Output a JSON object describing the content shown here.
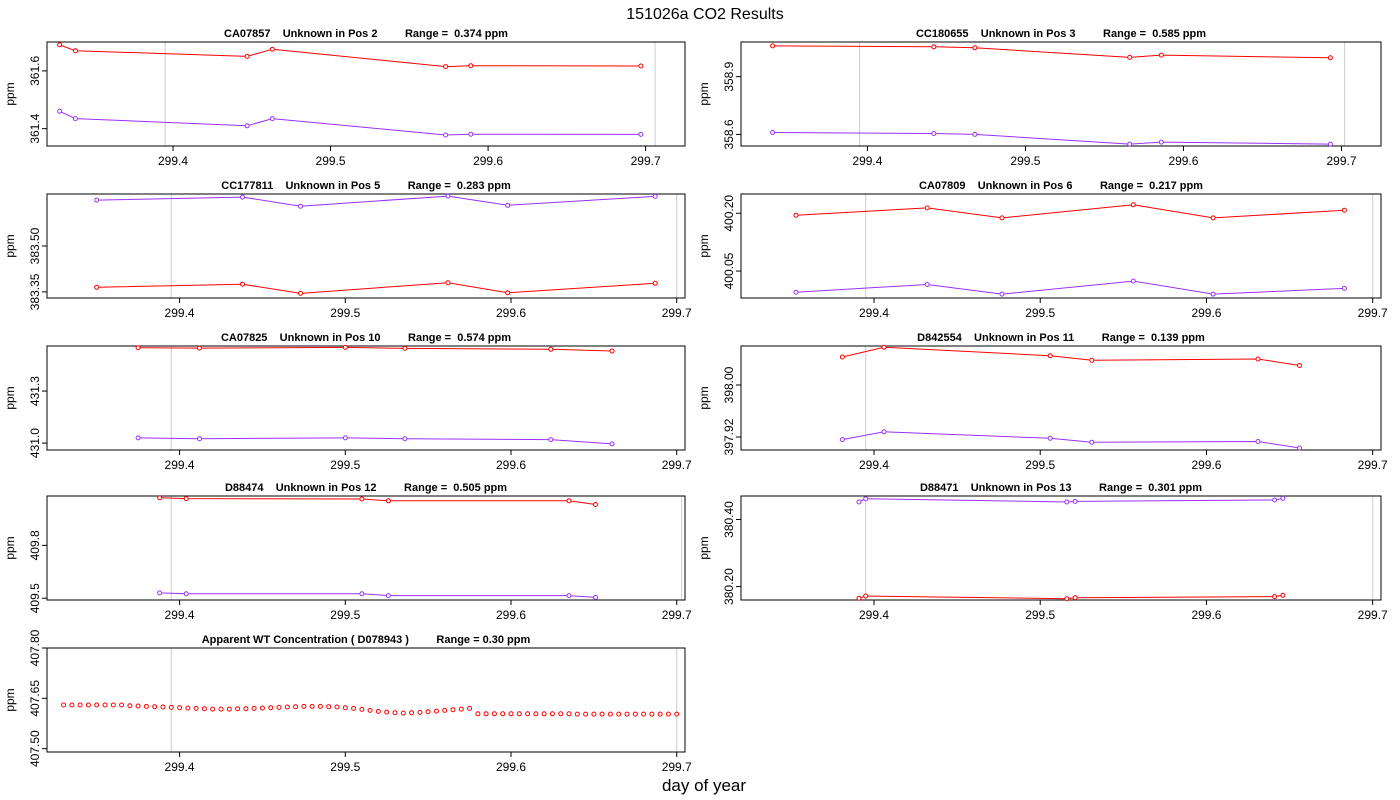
{
  "page": {
    "title": "151026a  CO2 Results",
    "xlabel": "day of year",
    "ylabel": "ppm"
  },
  "colors": {
    "series_a": "#ff0000",
    "series_b": "#9b30ff",
    "gridline": "#cccccc",
    "frame": "#000000"
  },
  "chart_data": [
    {
      "type": "line",
      "title": "CA07857    Unknown in Pos 2         Range =  0.374 ppm",
      "xlim": [
        299.32,
        299.725
      ],
      "xticks": [
        299.4,
        299.5,
        299.6,
        299.7
      ],
      "xtick_labels": [
        "299.4",
        "299.5",
        "299.6",
        "299.7"
      ],
      "vlines": [
        299.395,
        299.706
      ],
      "ylim": [
        361.34,
        361.7
      ],
      "yticks": [
        361.4,
        361.6
      ],
      "ytick_labels": [
        "361.4",
        "361.6"
      ],
      "ylabel": "ppm",
      "series": [
        {
          "name": "red",
          "x": [
            299.328,
            299.338,
            299.447,
            299.463,
            299.573,
            299.589,
            299.697
          ],
          "y": [
            361.69,
            361.67,
            361.65,
            361.675,
            361.615,
            361.618,
            361.617
          ]
        },
        {
          "name": "purple",
          "x": [
            299.328,
            299.338,
            299.447,
            299.463,
            299.573,
            299.589,
            299.697
          ],
          "y": [
            361.46,
            361.435,
            361.41,
            361.435,
            361.378,
            361.381,
            361.38
          ]
        }
      ]
    },
    {
      "type": "line",
      "title": "CC180655    Unknown in Pos 3         Range =  0.585 ppm",
      "xlim": [
        299.32,
        299.725
      ],
      "xticks": [
        299.4,
        299.5,
        299.6,
        299.7
      ],
      "xtick_labels": [
        "299.4",
        "299.5",
        "299.6",
        "299.7"
      ],
      "vlines": [
        299.395,
        299.702
      ],
      "ylim": [
        358.54,
        359.08
      ],
      "yticks": [
        358.6,
        358.9
      ],
      "ytick_labels": [
        "358.6",
        "358.9"
      ],
      "ylabel": "ppm",
      "series": [
        {
          "name": "red",
          "x": [
            299.34,
            299.442,
            299.468,
            299.566,
            299.586,
            299.693
          ],
          "y": [
            359.06,
            359.055,
            359.05,
            359.0,
            359.012,
            358.998
          ]
        },
        {
          "name": "purple",
          "x": [
            299.34,
            299.442,
            299.468,
            299.566,
            299.586,
            299.693
          ],
          "y": [
            358.61,
            358.605,
            358.6,
            358.55,
            358.56,
            358.55
          ]
        }
      ]
    },
    {
      "type": "line",
      "title": "CC177811    Unknown in Pos 5         Range =  0.283 ppm",
      "xlim": [
        299.32,
        299.705
      ],
      "xticks": [
        299.4,
        299.5,
        299.6,
        299.7
      ],
      "xtick_labels": [
        "299.4",
        "299.5",
        "299.6",
        "299.7"
      ],
      "vlines": [
        299.395,
        299.7
      ],
      "ylim": [
        383.33,
        383.67
      ],
      "yticks": [
        383.35,
        383.5
      ],
      "ytick_labels": [
        "383.35",
        "383.50"
      ],
      "ylabel": "ppm",
      "series": [
        {
          "name": "purple",
          "x": [
            299.35,
            299.438,
            299.473,
            299.562,
            299.598,
            299.687
          ],
          "y": [
            383.65,
            383.66,
            383.63,
            383.663,
            383.633,
            383.662
          ]
        },
        {
          "name": "red",
          "x": [
            299.35,
            299.438,
            299.473,
            299.562,
            299.598,
            299.687
          ],
          "y": [
            383.365,
            383.375,
            383.345,
            383.38,
            383.347,
            383.378
          ]
        }
      ]
    },
    {
      "type": "line",
      "title": "CA07809    Unknown in Pos 6         Range =  0.217 ppm",
      "xlim": [
        299.32,
        299.705
      ],
      "xticks": [
        299.4,
        299.5,
        299.6,
        299.7
      ],
      "xtick_labels": [
        "299.4",
        "299.5",
        "299.6",
        "299.7"
      ],
      "vlines": [
        299.395,
        299.7
      ],
      "ylim": [
        399.98,
        400.25
      ],
      "yticks": [
        400.05,
        400.2
      ],
      "ytick_labels": [
        "400.05",
        "400.20"
      ],
      "ylabel": "ppm",
      "series": [
        {
          "name": "red",
          "x": [
            299.353,
            299.432,
            299.477,
            299.556,
            299.604,
            299.683
          ],
          "y": [
            400.195,
            400.214,
            400.188,
            400.222,
            400.188,
            400.208
          ]
        },
        {
          "name": "purple",
          "x": [
            299.353,
            299.432,
            299.477,
            299.556,
            299.604,
            299.683
          ],
          "y": [
            399.995,
            400.015,
            399.99,
            400.024,
            399.99,
            400.005
          ]
        }
      ]
    },
    {
      "type": "line",
      "title": "CA07825    Unknown in Pos 10         Range =  0.574 ppm",
      "xlim": [
        299.32,
        299.705
      ],
      "xticks": [
        299.4,
        299.5,
        299.6,
        299.7
      ],
      "xtick_labels": [
        "299.4",
        "299.5",
        "299.6",
        "299.7"
      ],
      "vlines": [
        299.395,
        299.705
      ],
      "ylim": [
        430.96,
        431.56
      ],
      "yticks": [
        431.0,
        431.3
      ],
      "ytick_labels": [
        "431.0",
        "431.3"
      ],
      "ylabel": "ppm",
      "series": [
        {
          "name": "red",
          "x": [
            299.375,
            299.412,
            299.5,
            299.536,
            299.624,
            299.661
          ],
          "y": [
            431.55,
            431.548,
            431.552,
            431.546,
            431.541,
            431.531
          ]
        },
        {
          "name": "purple",
          "x": [
            299.375,
            299.412,
            299.5,
            299.536,
            299.624,
            299.661
          ],
          "y": [
            431.03,
            431.025,
            431.03,
            431.025,
            431.02,
            430.995
          ]
        }
      ]
    },
    {
      "type": "line",
      "title": "D842554    Unknown in Pos 11         Range =  0.139 ppm",
      "xlim": [
        299.32,
        299.705
      ],
      "xticks": [
        299.4,
        299.5,
        299.6,
        299.7
      ],
      "xtick_labels": [
        "299.4",
        "299.5",
        "299.6",
        "299.7"
      ],
      "vlines": [
        299.395,
        299.705
      ],
      "ylim": [
        397.9,
        398.06
      ],
      "yticks": [
        397.92,
        398.0
      ],
      "ytick_labels": [
        "397.92",
        "398.00"
      ],
      "ylabel": "ppm",
      "series": [
        {
          "name": "red",
          "x": [
            299.381,
            299.406,
            299.506,
            299.531,
            299.631,
            299.656
          ],
          "y": [
            398.043,
            398.058,
            398.045,
            398.038,
            398.04,
            398.03
          ]
        },
        {
          "name": "purple",
          "x": [
            299.381,
            299.406,
            299.506,
            299.531,
            299.631,
            299.656
          ],
          "y": [
            397.916,
            397.928,
            397.918,
            397.912,
            397.913,
            397.903
          ]
        }
      ]
    },
    {
      "type": "line",
      "title": "D88474    Unknown in Pos 12         Range =  0.505 ppm",
      "xlim": [
        299.32,
        299.705
      ],
      "xticks": [
        299.4,
        299.5,
        299.6,
        299.7
      ],
      "xtick_labels": [
        "299.4",
        "299.5",
        "299.6",
        "299.7"
      ],
      "vlines": [
        299.395,
        299.703
      ],
      "ylim": [
        409.49,
        410.08
      ],
      "yticks": [
        409.5,
        409.8
      ],
      "ytick_labels": [
        "409.5",
        "409.8"
      ],
      "ylabel": "ppm",
      "series": [
        {
          "name": "red",
          "x": [
            299.388,
            299.404,
            299.51,
            299.526,
            299.635,
            299.651
          ],
          "y": [
            410.07,
            410.065,
            410.063,
            410.053,
            410.053,
            410.032
          ]
        },
        {
          "name": "purple",
          "x": [
            299.388,
            299.404,
            299.51,
            299.526,
            299.635,
            299.651
          ],
          "y": [
            409.53,
            409.525,
            409.525,
            409.515,
            409.515,
            409.505
          ]
        }
      ]
    },
    {
      "type": "line",
      "title": "D88471    Unknown in Pos 13         Range =  0.301 ppm",
      "xlim": [
        299.32,
        299.705
      ],
      "xticks": [
        299.4,
        299.5,
        299.6,
        299.7
      ],
      "xtick_labels": [
        "299.4",
        "299.5",
        "299.6",
        "299.7"
      ],
      "vlines": [
        299.395,
        299.7
      ],
      "ylim": [
        380.16,
        380.47
      ],
      "yticks": [
        380.2,
        380.4
      ],
      "ytick_labels": [
        "380.20",
        "380.40"
      ],
      "ylabel": "ppm",
      "series": [
        {
          "name": "purple",
          "x": [
            299.391,
            299.395,
            299.516,
            299.521,
            299.641,
            299.646
          ],
          "y": [
            380.452,
            380.462,
            380.452,
            380.454,
            380.458,
            380.463
          ]
        },
        {
          "name": "red",
          "x": [
            299.391,
            299.395,
            299.516,
            299.521,
            299.641,
            299.646
          ],
          "y": [
            380.165,
            380.172,
            380.164,
            380.167,
            380.17,
            380.174
          ]
        }
      ]
    },
    {
      "type": "scatter",
      "title": "Apparent WT Concentration ( D078943 )         Range = 0.30 ppm",
      "xlim": [
        299.32,
        299.705
      ],
      "xticks": [
        299.4,
        299.5,
        299.6,
        299.7
      ],
      "xtick_labels": [
        "299.4",
        "299.5",
        "299.6",
        "299.7"
      ],
      "vlines": [
        299.395,
        299.7
      ],
      "ylim": [
        407.49,
        407.8
      ],
      "yticks": [
        407.5,
        407.65,
        407.8
      ],
      "ytick_labels": [
        "407.50",
        "407.65",
        "407.80"
      ],
      "ylabel": "ppm",
      "series": [
        {
          "name": "red",
          "x": [
            299.33,
            299.335,
            299.34,
            299.345,
            299.35,
            299.355,
            299.36,
            299.365,
            299.37,
            299.375,
            299.38,
            299.385,
            299.39,
            299.395,
            299.4,
            299.405,
            299.41,
            299.415,
            299.42,
            299.425,
            299.43,
            299.435,
            299.44,
            299.445,
            299.45,
            299.455,
            299.46,
            299.465,
            299.47,
            299.475,
            299.48,
            299.485,
            299.49,
            299.495,
            299.5,
            299.505,
            299.51,
            299.515,
            299.52,
            299.525,
            299.53,
            299.535,
            299.54,
            299.545,
            299.55,
            299.555,
            299.56,
            299.565,
            299.57,
            299.575,
            299.58,
            299.585,
            299.59,
            299.595,
            299.6,
            299.605,
            299.61,
            299.615,
            299.62,
            299.625,
            299.63,
            299.635,
            299.64,
            299.645,
            299.65,
            299.655,
            299.66,
            299.665,
            299.67,
            299.675,
            299.68,
            299.685,
            299.69,
            299.695,
            299.7
          ],
          "y": [
            407.63,
            407.63,
            407.63,
            407.63,
            407.63,
            407.63,
            407.63,
            407.63,
            407.628,
            407.627,
            407.626,
            407.625,
            407.624,
            407.623,
            407.622,
            407.621,
            407.62,
            407.619,
            407.618,
            407.618,
            407.618,
            407.619,
            407.619,
            407.62,
            407.621,
            407.622,
            407.623,
            407.624,
            407.625,
            407.626,
            407.626,
            407.626,
            407.625,
            407.624,
            407.622,
            407.62,
            407.617,
            407.614,
            407.611,
            407.609,
            407.607,
            407.606,
            407.607,
            407.608,
            407.61,
            407.612,
            407.614,
            407.616,
            407.618,
            407.62,
            407.604,
            407.604,
            407.604,
            407.604,
            407.604,
            407.604,
            407.604,
            407.604,
            407.604,
            407.604,
            407.604,
            407.604,
            407.603,
            407.603,
            407.603,
            407.603,
            407.603,
            407.603,
            407.603,
            407.603,
            407.603,
            407.603,
            407.603,
            407.603,
            407.603
          ]
        }
      ]
    }
  ]
}
